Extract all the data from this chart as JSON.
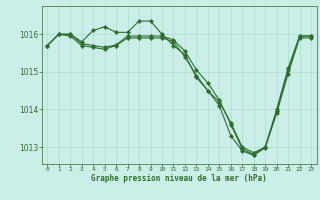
{
  "background_color": "#cceee8",
  "grid_color": "#aaddcc",
  "line_color": "#2d6e2d",
  "marker_color": "#2d6e2d",
  "title": "Graphe pression niveau de la mer (hPa)",
  "xlim": [
    -0.5,
    23.5
  ],
  "ylim": [
    1012.55,
    1016.75
  ],
  "yticks": [
    1013,
    1014,
    1015,
    1016
  ],
  "xticks": [
    0,
    1,
    2,
    3,
    4,
    5,
    6,
    7,
    8,
    9,
    10,
    11,
    12,
    13,
    14,
    15,
    16,
    17,
    18,
    19,
    20,
    21,
    22,
    23
  ],
  "s1": [
    1015.7,
    1016.0,
    1016.0,
    1015.8,
    1016.1,
    1016.2,
    1016.05,
    1016.05,
    1016.35,
    1016.35,
    1016.0,
    1015.7,
    1015.45,
    1014.85,
    1014.5,
    1014.2,
    1013.65,
    1013.0,
    1012.85,
    1013.0,
    1014.0,
    1015.1,
    1015.95,
    1015.95
  ],
  "s2": [
    1015.7,
    1016.0,
    1016.0,
    1015.75,
    1015.7,
    1015.65,
    1015.72,
    1015.95,
    1015.95,
    1015.95,
    1015.95,
    1015.85,
    1015.55,
    1015.05,
    1014.7,
    1014.25,
    1013.6,
    1012.95,
    1012.8,
    1013.0,
    1013.95,
    1015.05,
    1015.95,
    1015.95
  ],
  "s3": [
    1015.7,
    1016.0,
    1015.95,
    1015.7,
    1015.65,
    1015.6,
    1015.7,
    1015.9,
    1015.9,
    1015.9,
    1015.9,
    1015.8,
    1015.4,
    1014.9,
    1014.5,
    1014.1,
    1013.3,
    1012.9,
    1012.78,
    1012.98,
    1013.9,
    1014.95,
    1015.9,
    1015.9
  ]
}
